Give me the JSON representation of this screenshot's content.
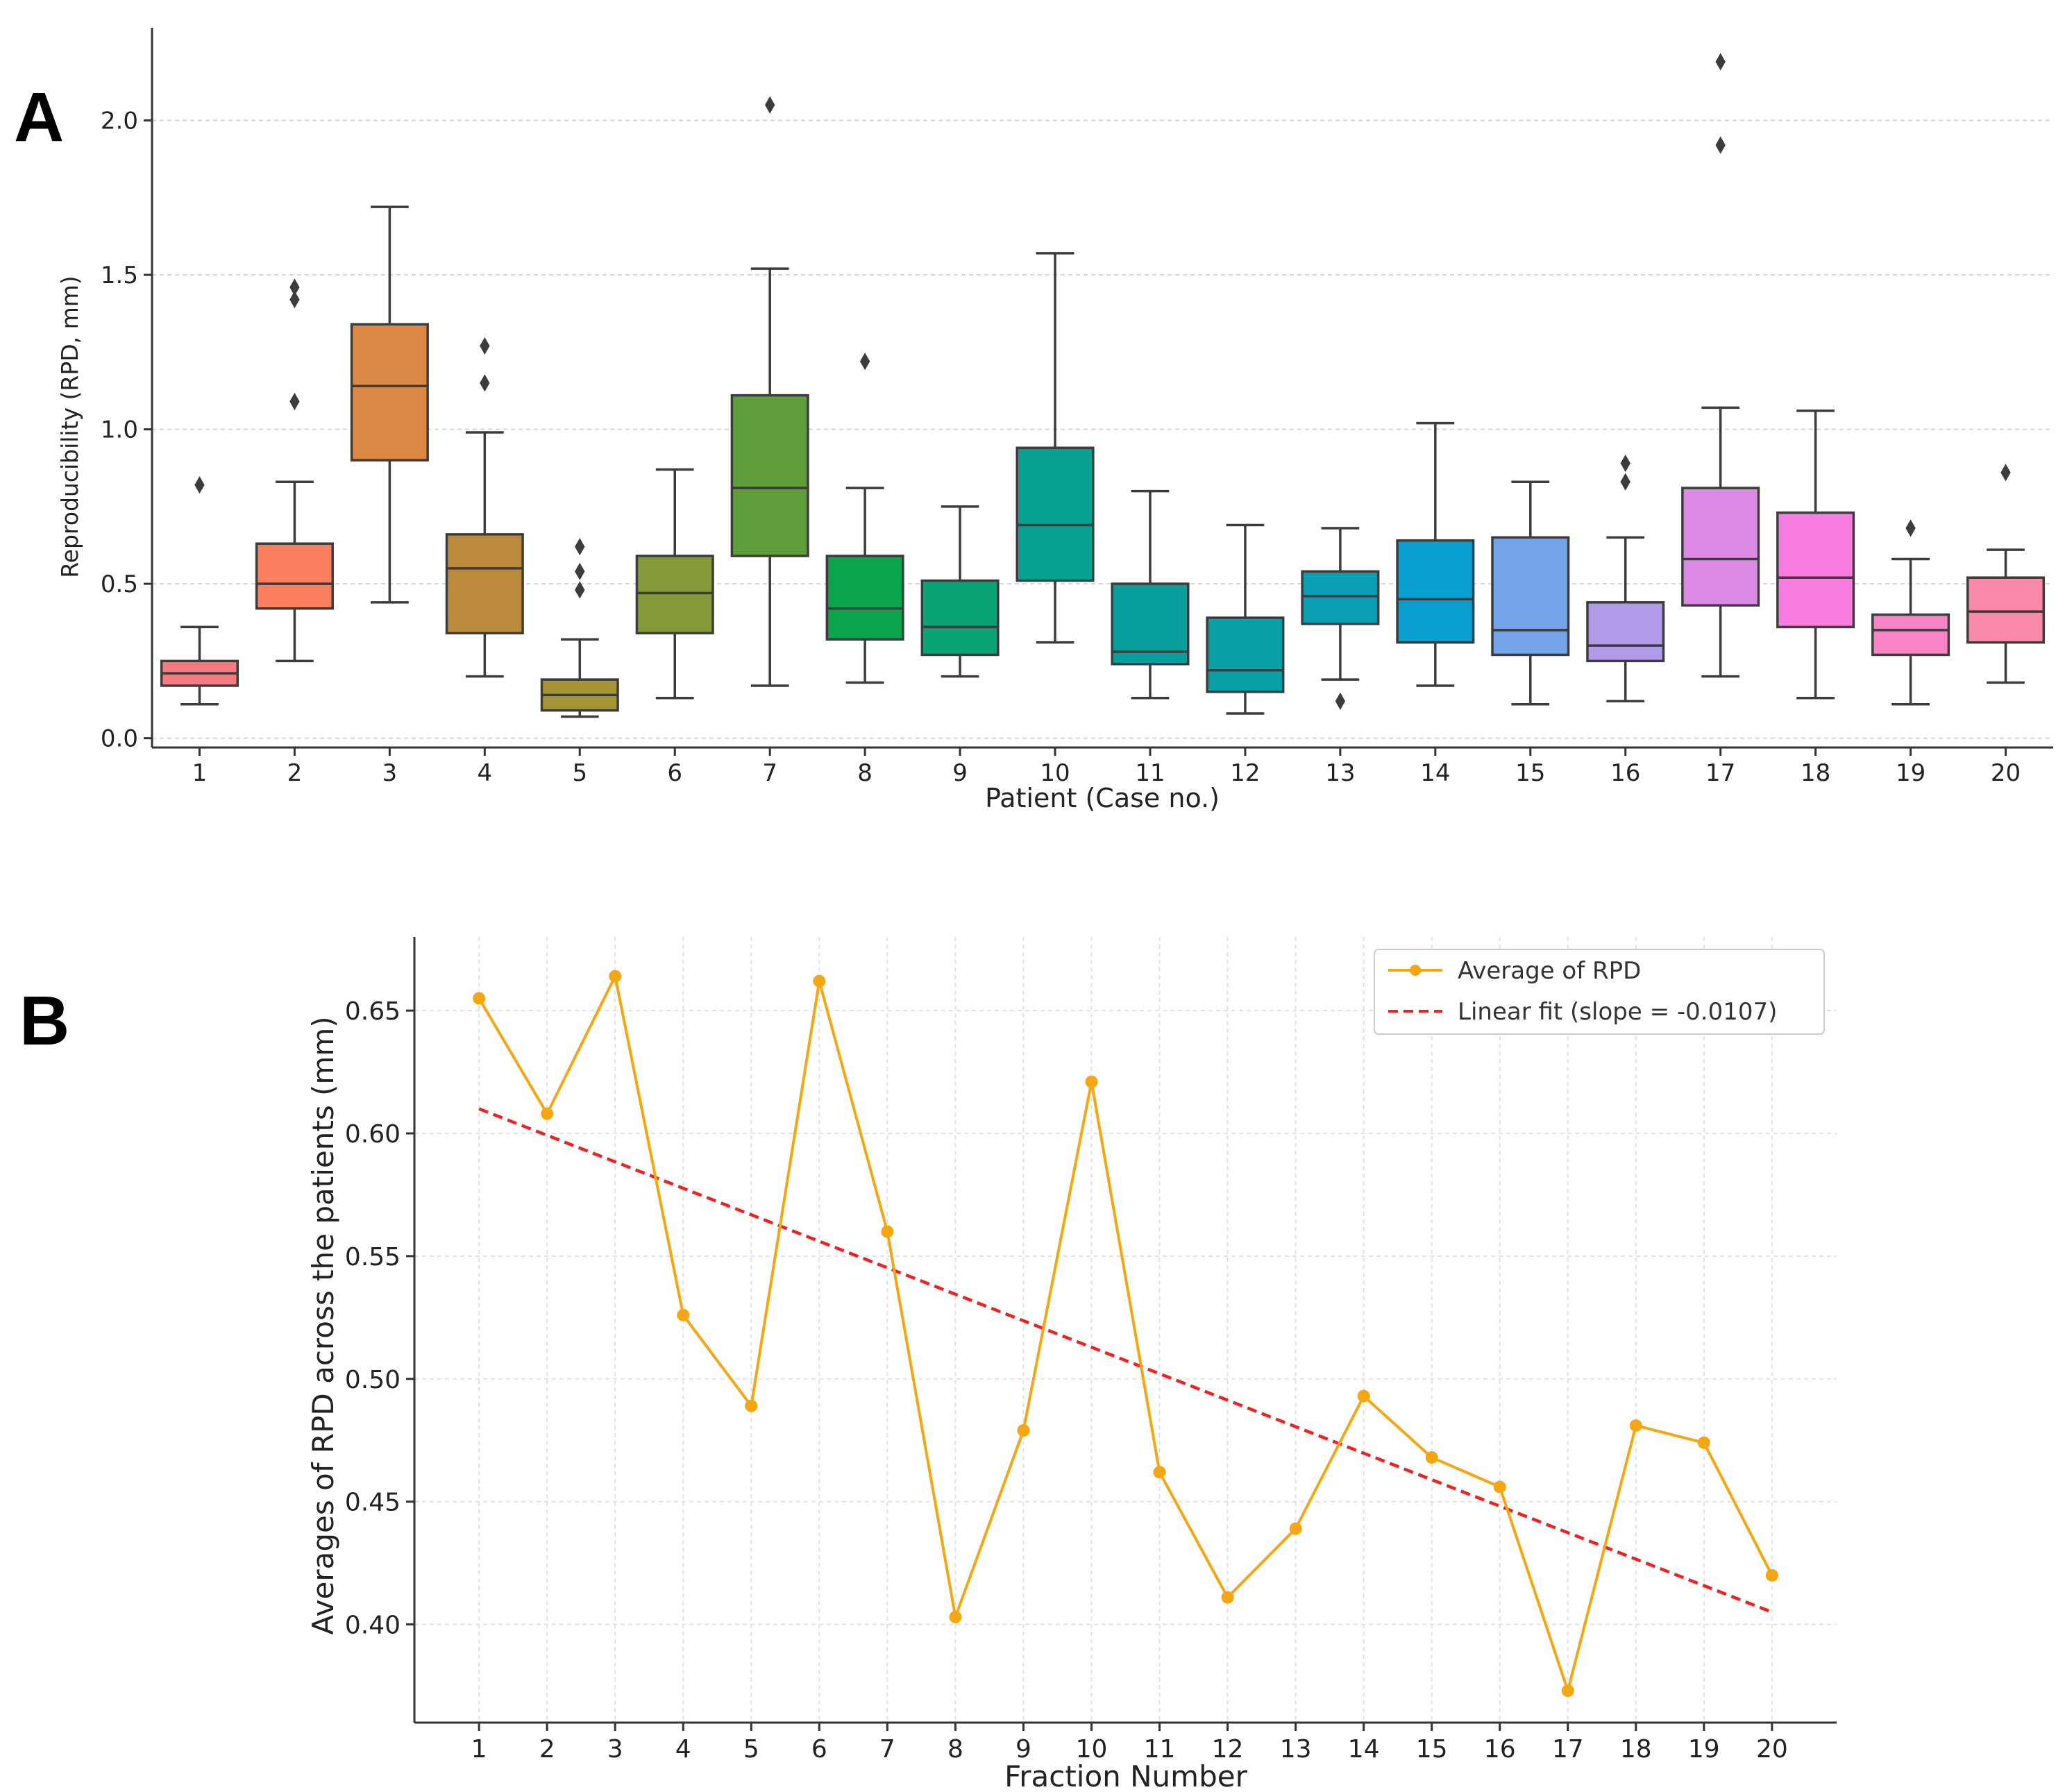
{
  "chart_data": [
    {
      "type": "box",
      "panel_label": "A",
      "xlabel": "Patient (Case no.)",
      "ylabel": "Reproducibility (RPD, mm)",
      "ylim": [
        -0.03,
        2.3
      ],
      "yticks": [
        "0.0",
        "0.5",
        "1.0",
        "1.5",
        "2.0"
      ],
      "grid": "horizontal dashed",
      "categories": [
        "1",
        "2",
        "3",
        "4",
        "5",
        "6",
        "7",
        "8",
        "9",
        "10",
        "11",
        "12",
        "13",
        "14",
        "15",
        "16",
        "17",
        "18",
        "19",
        "20"
      ],
      "boxes": [
        {
          "min": 0.11,
          "q1": 0.17,
          "median": 0.21,
          "q3": 0.25,
          "max": 0.36,
          "outliers": [
            0.82
          ],
          "color": "#f27c82"
        },
        {
          "min": 0.25,
          "q1": 0.42,
          "median": 0.5,
          "q3": 0.63,
          "max": 0.83,
          "outliers": [
            1.09,
            1.42,
            1.46
          ],
          "color": "#fa7f5e"
        },
        {
          "min": 0.44,
          "q1": 0.9,
          "median": 1.14,
          "q3": 1.34,
          "max": 1.72,
          "outliers": [],
          "color": "#dc8844"
        },
        {
          "min": 0.2,
          "q1": 0.34,
          "median": 0.55,
          "q3": 0.66,
          "max": 0.99,
          "outliers": [
            1.15,
            1.27
          ],
          "color": "#bc8a3c"
        },
        {
          "min": 0.07,
          "q1": 0.09,
          "median": 0.14,
          "q3": 0.19,
          "max": 0.32,
          "outliers": [
            0.48,
            0.54,
            0.62
          ],
          "color": "#a69535"
        },
        {
          "min": 0.13,
          "q1": 0.34,
          "median": 0.47,
          "q3": 0.59,
          "max": 0.87,
          "outliers": [],
          "color": "#849a38"
        },
        {
          "min": 0.17,
          "q1": 0.59,
          "median": 0.81,
          "q3": 1.11,
          "max": 1.52,
          "outliers": [
            2.05
          ],
          "color": "#609e3c"
        },
        {
          "min": 0.18,
          "q1": 0.32,
          "median": 0.42,
          "q3": 0.59,
          "max": 0.81,
          "outliers": [
            1.22
          ],
          "color": "#0ba44a"
        },
        {
          "min": 0.2,
          "q1": 0.27,
          "median": 0.36,
          "q3": 0.51,
          "max": 0.75,
          "outliers": [],
          "color": "#0aa375"
        },
        {
          "min": 0.31,
          "q1": 0.51,
          "median": 0.69,
          "q3": 0.94,
          "max": 1.57,
          "outliers": [],
          "color": "#07a290"
        },
        {
          "min": 0.13,
          "q1": 0.24,
          "median": 0.28,
          "q3": 0.5,
          "max": 0.8,
          "outliers": [],
          "color": "#08a09c"
        },
        {
          "min": 0.08,
          "q1": 0.15,
          "median": 0.22,
          "q3": 0.39,
          "max": 0.69,
          "outliers": [],
          "color": "#099fa6"
        },
        {
          "min": 0.19,
          "q1": 0.37,
          "median": 0.46,
          "q3": 0.54,
          "max": 0.68,
          "outliers": [
            0.12
          ],
          "color": "#0a9fb3"
        },
        {
          "min": 0.17,
          "q1": 0.31,
          "median": 0.45,
          "q3": 0.64,
          "max": 1.02,
          "outliers": [],
          "color": "#089fd0"
        },
        {
          "min": 0.11,
          "q1": 0.27,
          "median": 0.35,
          "q3": 0.65,
          "max": 0.83,
          "outliers": [],
          "color": "#73a3e9"
        },
        {
          "min": 0.12,
          "q1": 0.25,
          "median": 0.3,
          "q3": 0.44,
          "max": 0.65,
          "outliers": [
            0.83,
            0.89
          ],
          "color": "#b19ae8"
        },
        {
          "min": 0.2,
          "q1": 0.43,
          "median": 0.58,
          "q3": 0.81,
          "max": 1.07,
          "outliers": [
            1.92,
            2.19
          ],
          "color": "#dd8ae6"
        },
        {
          "min": 0.13,
          "q1": 0.36,
          "median": 0.52,
          "q3": 0.73,
          "max": 1.06,
          "outliers": [],
          "color": "#f77de0"
        },
        {
          "min": 0.11,
          "q1": 0.27,
          "median": 0.35,
          "q3": 0.4,
          "max": 0.58,
          "outliers": [
            0.68
          ],
          "color": "#f884c6"
        },
        {
          "min": 0.18,
          "q1": 0.31,
          "median": 0.41,
          "q3": 0.52,
          "max": 0.61,
          "outliers": [
            0.86
          ],
          "color": "#f889a8"
        }
      ]
    },
    {
      "type": "line",
      "panel_label": "B",
      "xlabel": "Fraction Number",
      "ylabel": "Averages of RPD across the patients (mm)",
      "xlim": [
        0.05,
        20.95
      ],
      "ylim": [
        0.36,
        0.68
      ],
      "yticks": [
        "0.40",
        "0.45",
        "0.50",
        "0.55",
        "0.60",
        "0.65"
      ],
      "grid": "both dashed",
      "legend_position": "top-right",
      "x": [
        1,
        2,
        3,
        4,
        5,
        6,
        7,
        8,
        9,
        10,
        11,
        12,
        13,
        14,
        15,
        16,
        17,
        18,
        19,
        20
      ],
      "series": [
        {
          "name": "Average of RPD",
          "color": "#f5a613",
          "values": [
            0.655,
            0.608,
            0.664,
            0.526,
            0.489,
            0.662,
            0.56,
            0.403,
            0.479,
            0.621,
            0.462,
            0.411,
            0.439,
            0.493,
            0.468,
            0.456,
            0.373,
            0.481,
            0.474,
            0.42
          ]
        },
        {
          "name": "Linear fit (slope = -0.0107)",
          "color": "#ee2222",
          "style": "dashed",
          "start": [
            1,
            0.61
          ],
          "end": [
            20,
            0.405
          ]
        }
      ]
    }
  ]
}
